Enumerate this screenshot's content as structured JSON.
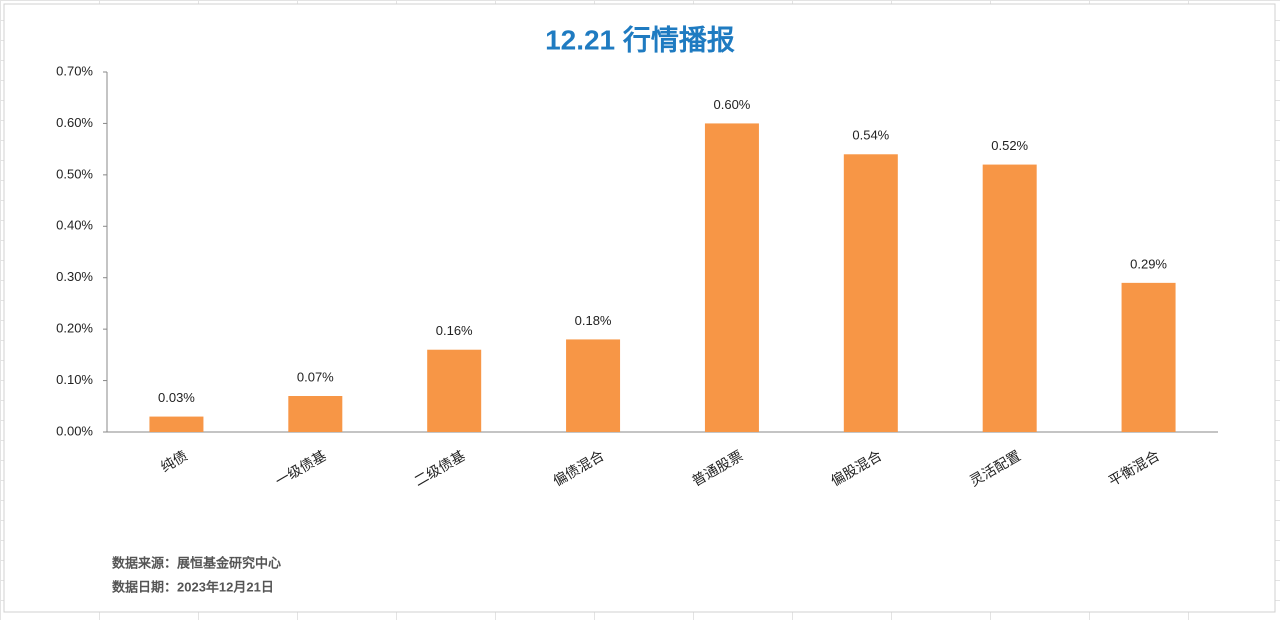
{
  "chart_data": {
    "type": "bar",
    "title": "12.21 行情播报",
    "categories": [
      "纯债",
      "一级债基",
      "二级债基",
      "偏债混合",
      "普通股票",
      "偏股混合",
      "灵活配置",
      "平衡混合"
    ],
    "values": [
      0.03,
      0.07,
      0.16,
      0.18,
      0.6,
      0.54,
      0.52,
      0.29
    ],
    "value_labels": [
      "0.03%",
      "0.07%",
      "0.16%",
      "0.18%",
      "0.60%",
      "0.54%",
      "0.52%",
      "0.29%"
    ],
    "color": "#f79646",
    "ylim": [
      0,
      0.7
    ],
    "yticks": [
      {
        "value": 0,
        "label": "0.00%"
      },
      {
        "value": 0.1,
        "label": "0.10%"
      },
      {
        "value": 0.2,
        "label": "0.20%"
      },
      {
        "value": 0.3,
        "label": "0.30%"
      },
      {
        "value": 0.4,
        "label": "0.40%"
      },
      {
        "value": 0.5,
        "label": "0.50%"
      },
      {
        "value": 0.6,
        "label": "0.60%"
      },
      {
        "value": 0.7,
        "label": "0.70%"
      }
    ],
    "grid": false,
    "notes": [
      "数据来源：展恒基金研究中心",
      "数据日期：2023年12月21日"
    ]
  }
}
